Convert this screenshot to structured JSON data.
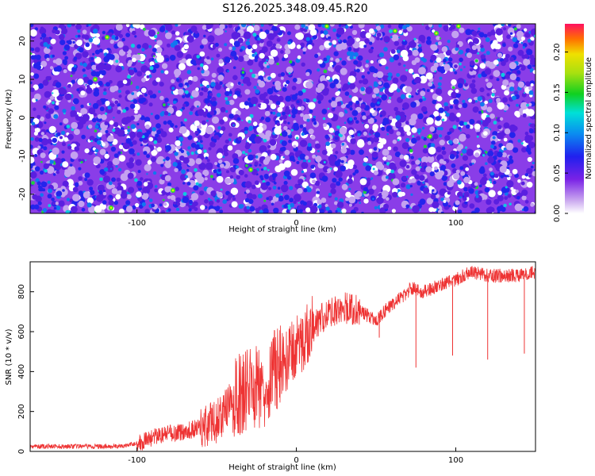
{
  "title": "S126.2025.348.09.45.R20",
  "chart_data": [
    {
      "type": "heatmap",
      "xlabel": "Height of straight line (km)",
      "ylabel": "Frequency (Hz)",
      "xlim": [
        -167,
        150
      ],
      "ylim": [
        -25,
        24.5
      ],
      "xticks": [
        -100,
        0,
        100
      ],
      "yticks": [
        -20,
        -10,
        0,
        10,
        20
      ],
      "colorbar": {
        "label": "Normalized spectral amplitude",
        "range": [
          0,
          0.235
        ],
        "ticks": [
          "0.00",
          "0.05",
          "0.10",
          "0.15",
          "0.20"
        ]
      },
      "grid": false
    },
    {
      "type": "line",
      "xlabel": "Height of straight line (km)",
      "ylabel": "SNR (10 * v/v)",
      "xlim": [
        -167,
        150
      ],
      "ylim": [
        0,
        950
      ],
      "xticks": [
        -100,
        0,
        100
      ],
      "yticks": [
        0,
        200,
        400,
        600,
        800
      ],
      "color": "#ee3333",
      "series": [
        {
          "name": "SNR",
          "x": [
            -167,
            -150,
            -130,
            -110,
            -100,
            -90,
            -80,
            -70,
            -60,
            -50,
            -40,
            -30,
            -20,
            -15,
            -10,
            -5,
            0,
            5,
            10,
            20,
            30,
            40,
            50,
            60,
            70,
            71,
            80,
            90,
            100,
            110,
            120,
            130,
            140,
            150
          ],
          "y": [
            25,
            25,
            25,
            25,
            40,
            70,
            90,
            100,
            120,
            150,
            250,
            320,
            330,
            400,
            430,
            470,
            520,
            560,
            620,
            700,
            720,
            700,
            660,
            740,
            800,
            820,
            800,
            830,
            860,
            900,
            880,
            880,
            880,
            900
          ]
        }
      ],
      "spikes": [
        {
          "x": 52,
          "min": 570
        },
        {
          "x": 75,
          "min": 420
        },
        {
          "x": 98,
          "min": 480
        },
        {
          "x": 120,
          "min": 460
        },
        {
          "x": 143,
          "min": 490
        }
      ],
      "grid": false
    }
  ]
}
